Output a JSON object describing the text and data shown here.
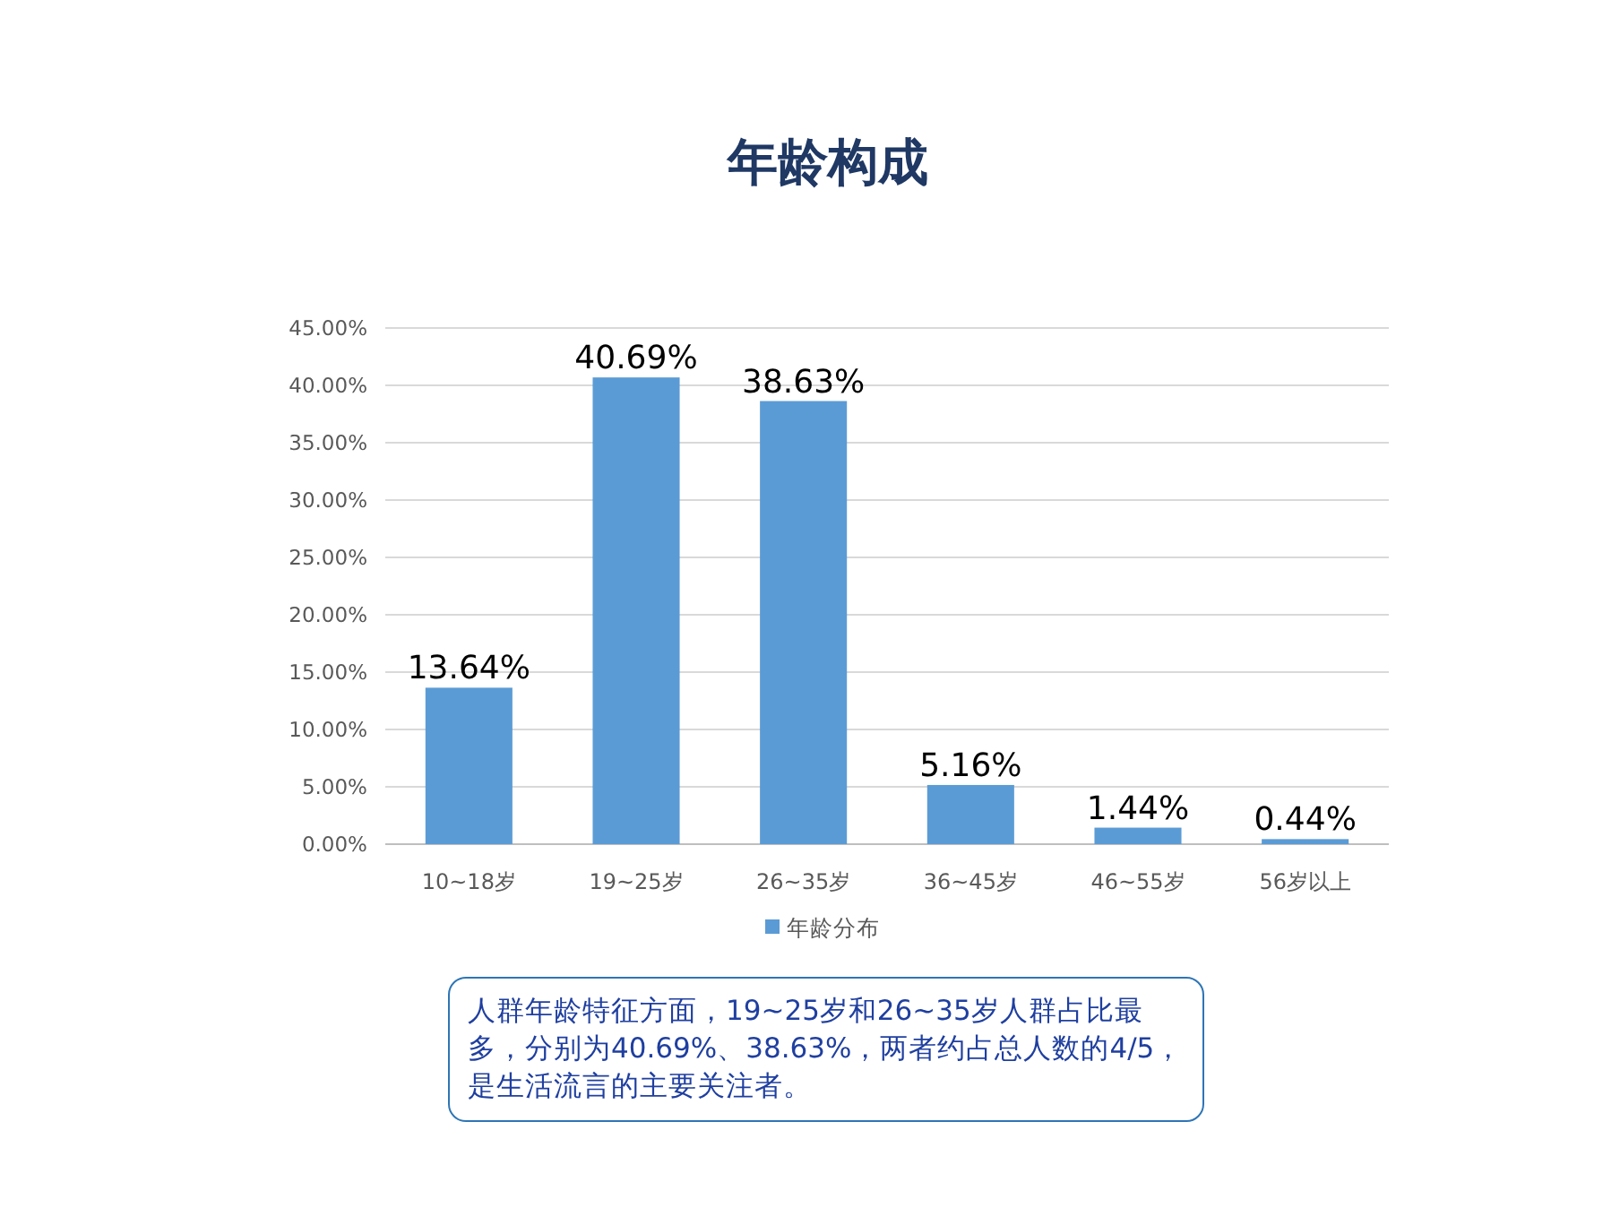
{
  "chart_data": {
    "type": "bar",
    "title": "年龄构成",
    "categories": [
      "10~18岁",
      "19~25岁",
      "26~35岁",
      "36~45岁",
      "46~55岁",
      "56岁以上"
    ],
    "series": [
      {
        "name": "年龄分布",
        "color": "#5b9bd5",
        "values": [
          13.64,
          40.69,
          38.63,
          5.16,
          1.44,
          0.44
        ],
        "value_labels": [
          "13.64%",
          "40.69%",
          "38.63%",
          "5.16%",
          "1.44%",
          "0.44%"
        ]
      }
    ],
    "ylim": [
      0,
      45
    ],
    "yticks": [
      {
        "value": 0,
        "label": "0.00%"
      },
      {
        "value": 5,
        "label": "5.00%"
      },
      {
        "value": 10,
        "label": "10.00%"
      },
      {
        "value": 15,
        "label": "15.00%"
      },
      {
        "value": 20,
        "label": "20.00%"
      },
      {
        "value": 25,
        "label": "25.00%"
      },
      {
        "value": 30,
        "label": "30.00%"
      },
      {
        "value": 35,
        "label": "35.00%"
      },
      {
        "value": 40,
        "label": "40.00%"
      },
      {
        "value": 45,
        "label": "45.00%"
      }
    ],
    "grid": "y",
    "legend": "bottom",
    "annotations": [
      "人群年龄特征方面，19~25岁和26~35岁人群占比最多，分别为40.69%、38.63%，两者约占总人数的4/5，是生活流言的主要关注者。"
    ]
  }
}
